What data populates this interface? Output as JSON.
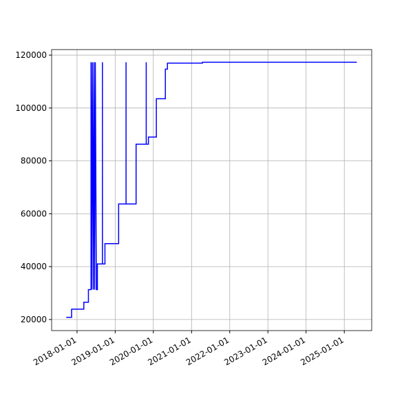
{
  "chart_data": {
    "type": "line",
    "x": [
      "2017-09-20",
      "2017-11-10",
      "2017-11-10",
      "2018-03-07",
      "2018-03-07",
      "2018-04-20",
      "2018-04-20",
      "2018-05-15",
      "2018-05-15",
      "2018-05-20",
      "2018-05-28",
      "2018-06-05",
      "2018-06-12",
      "2018-06-18",
      "2018-06-25",
      "2018-07-05",
      "2018-07-15",
      "2018-07-15",
      "2018-09-01",
      "2018-09-01",
      "2018-09-01",
      "2018-09-25",
      "2018-09-25",
      "2019-02-03",
      "2019-02-03",
      "2019-04-15",
      "2019-04-15",
      "2019-04-15",
      "2019-07-20",
      "2019-07-20",
      "2019-10-25",
      "2019-10-25",
      "2019-10-25",
      "2019-11-15",
      "2019-11-15",
      "2020-01-30",
      "2020-01-30",
      "2020-04-25",
      "2020-04-25",
      "2020-05-15",
      "2020-05-15",
      "2021-04-15",
      "2021-04-15",
      "2025-05-01"
    ],
    "series": [
      {
        "color": "#0000ff",
        "values": [
          20800,
          20800,
          23900,
          23900,
          26500,
          26500,
          31300,
          31300,
          117300,
          31300,
          117300,
          31300,
          117300,
          31300,
          117300,
          31300,
          31300,
          41000,
          41000,
          117300,
          41000,
          41000,
          48700,
          48700,
          63700,
          63700,
          117300,
          63700,
          63700,
          86300,
          86300,
          117300,
          86300,
          86300,
          89000,
          89000,
          103500,
          103500,
          114700,
          114700,
          117000,
          117000,
          117300,
          117300
        ]
      }
    ],
    "xlim": [
      "2017-05-03",
      "2025-09-20"
    ],
    "xticks": [
      "2018-01-01",
      "2019-01-01",
      "2020-01-01",
      "2021-01-01",
      "2022-01-01",
      "2023-01-01",
      "2024-01-01",
      "2025-01-01"
    ],
    "ylim": [
      15800,
      122100
    ],
    "yticks": [
      20000,
      40000,
      60000,
      80000,
      100000,
      120000
    ],
    "grid": true
  }
}
